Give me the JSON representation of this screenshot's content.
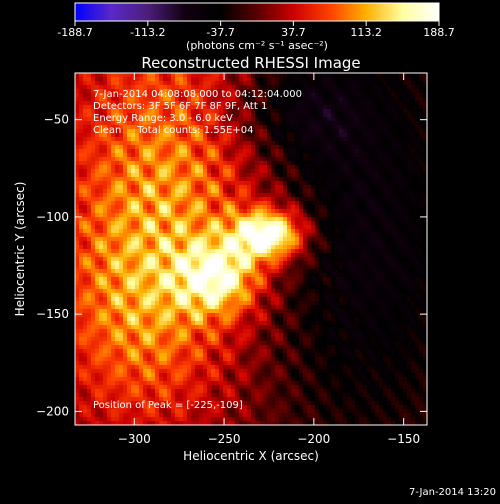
{
  "colorbar": {
    "ticks": [
      "-188.7",
      "-113.2",
      "-37.7",
      "37.7",
      "113.2",
      "188.7"
    ],
    "unit_label": "(photons cm⁻² s⁻¹ asec⁻²)",
    "range": [
      -188.7,
      188.7
    ],
    "colormap": [
      "#0000ff",
      "#5a28c8",
      "#4b1e7a",
      "#120010",
      "#000000",
      "#5a0000",
      "#cc0000",
      "#ff4000",
      "#ffb000",
      "#ffffa0",
      "#ffffff"
    ]
  },
  "chart_data": {
    "type": "heatmap",
    "title": "Reconstructed RHESSI Image",
    "xlabel": "Heliocentric X (arcsec)",
    "ylabel": "Heliocentric Y (arcsec)",
    "xlim": [
      -333,
      -137
    ],
    "ylim": [
      -207,
      -26
    ],
    "xticks": [
      -300,
      -250,
      -200,
      -150
    ],
    "yticks": [
      -50,
      -100,
      -150,
      -200
    ],
    "grid": false,
    "annotations": [
      "7-Jan-2014 04:08:08.000 to 04:12:04.000",
      "Detectors: 3F 5F 6F 7F 8F 9F, Att 1",
      "Energy Range: 3.0 - 6.0 keV",
      "Clean     Total counts: 1.55E+04"
    ],
    "peak_label": "Position of Peak = [-225,-109]",
    "peak": {
      "x": -225,
      "y": -109,
      "value": 188.7
    }
  },
  "footer_timestamp": "7-Jan-2014 13:20"
}
